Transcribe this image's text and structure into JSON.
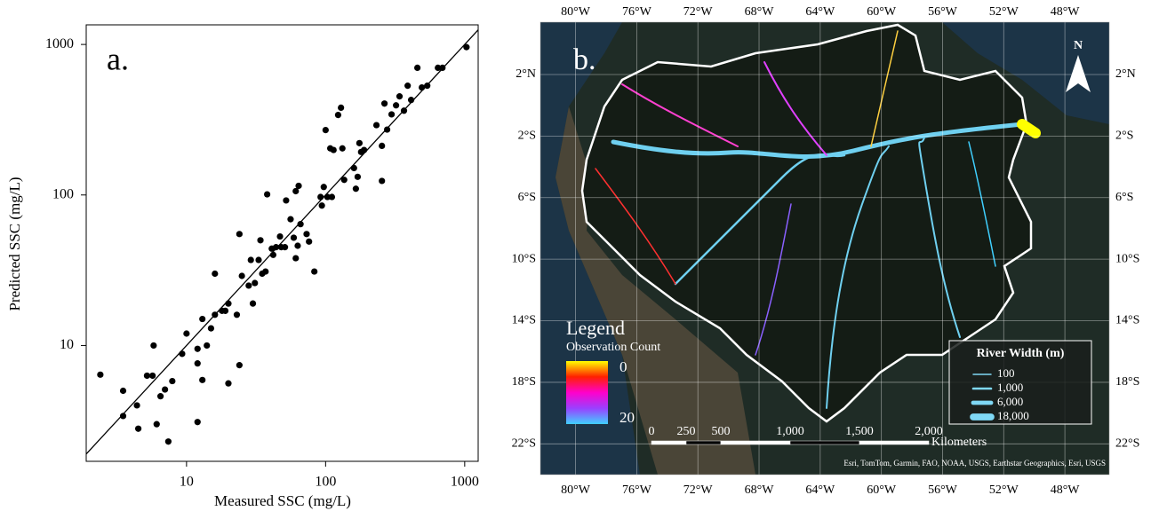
{
  "chart_data": [
    {
      "type": "scatter",
      "panel_label": "a.",
      "x_label": "Measured SSC (mg/L)",
      "y_label": "Predicted SSC (mg/L)",
      "xscale": "log",
      "yscale": "log",
      "xlim": [
        1.9,
        1250
      ],
      "ylim": [
        1.7,
        1350
      ],
      "xticks": [
        10,
        100,
        1000
      ],
      "yticks": [
        10,
        100,
        1000
      ],
      "grid": false,
      "color": "#000000",
      "x": [
        2.4,
        3.5,
        3.5,
        4.4,
        4.5,
        5.2,
        5.7,
        5.8,
        6.1,
        6.5,
        7.0,
        7.4,
        7.9,
        9.3,
        10,
        12,
        12,
        12,
        13,
        13,
        14,
        15,
        16,
        16,
        18,
        19,
        20,
        20,
        23,
        24,
        24,
        25,
        28,
        29,
        30,
        31,
        33,
        34,
        35,
        37,
        38,
        41,
        42,
        44,
        47,
        48,
        51,
        52,
        56,
        59,
        61,
        61,
        63,
        64,
        66,
        73,
        76,
        83,
        92,
        94,
        97,
        100,
        103,
        108,
        111,
        114,
        123,
        129,
        132,
        136,
        160,
        165,
        170,
        175,
        180,
        189,
        232,
        254,
        254,
        265,
        277,
        298,
        321,
        340,
        366,
        389,
        412,
        457,
        492,
        538,
        642,
        692,
        1030
      ],
      "y": [
        6.4,
        5.0,
        3.4,
        4.0,
        2.8,
        6.3,
        6.3,
        10,
        3.0,
        4.6,
        5.1,
        2.3,
        5.8,
        8.8,
        12,
        7.6,
        9.5,
        3.1,
        5.9,
        15,
        10,
        13,
        16,
        30,
        17,
        17,
        5.6,
        19,
        16,
        7.4,
        55,
        29,
        25,
        37,
        19,
        26,
        37,
        50,
        30,
        31,
        101,
        44,
        40,
        45,
        53,
        45,
        45,
        92,
        69,
        52,
        106,
        38,
        46,
        115,
        64,
        55,
        49,
        31,
        97,
        85,
        113,
        270,
        97,
        204,
        97,
        199,
        340,
        380,
        204,
        126,
        151,
        110,
        132,
        221,
        193,
        199,
        291,
        212,
        124,
        405,
        272,
        343,
        394,
        452,
        363,
        532,
        428,
        700,
        518,
        532,
        700,
        700,
        960
      ],
      "reference_line": {
        "x": [
          1.9,
          1250
        ],
        "y": [
          1.9,
          1250
        ]
      }
    },
    {
      "type": "map",
      "panel_label": "b.",
      "xlim": [
        -82.3,
        -45.1
      ],
      "ylim": [
        -24,
        5.4
      ],
      "grid": true,
      "xticks": [
        {
          "value": -80,
          "label": "80°W"
        },
        {
          "value": -76,
          "label": "76°W"
        },
        {
          "value": -72,
          "label": "72°W"
        },
        {
          "value": -68,
          "label": "68°W"
        },
        {
          "value": -64,
          "label": "64°W"
        },
        {
          "value": -60,
          "label": "60°W"
        },
        {
          "value": -56,
          "label": "56°W"
        },
        {
          "value": -52,
          "label": "52°W"
        },
        {
          "value": -48,
          "label": "48°W"
        }
      ],
      "yticks": [
        {
          "value": 2,
          "label": "2°N"
        },
        {
          "value": -2,
          "label": "2°S"
        },
        {
          "value": -6,
          "label": "6°S"
        },
        {
          "value": -10,
          "label": "10°S"
        },
        {
          "value": -14,
          "label": "14°S"
        },
        {
          "value": -18,
          "label": "18°S"
        },
        {
          "value": -22,
          "label": "22°S"
        }
      ],
      "north_label": "N",
      "observation_legend": {
        "title": "Legend",
        "subtitle": "Observation Count",
        "min": 0,
        "max": 20,
        "colors": [
          "#ffff00",
          "#ff2000",
          "#ff00cc",
          "#9a40ff",
          "#40d0ff"
        ]
      },
      "river_width_legend": {
        "title": "River Width (m)",
        "values": [
          100,
          1000,
          6000,
          18000
        ],
        "value_labels": [
          "100",
          "1,000",
          "6,000",
          "18,000"
        ],
        "color": "#7fd8f5"
      },
      "scale_bar": {
        "ticks": [
          0,
          250,
          500,
          {
            "value": 1000,
            "label": "1,000"
          },
          {
            "value": 1500,
            "label": "1,500"
          },
          {
            "value": 2000,
            "label": "2,000"
          }
        ],
        "unit": "Kilometers"
      },
      "attribution": "Esri, TomTom, Garmin, FAO, NOAA, USGS, Earthstar Geographics, Esri, USGS"
    }
  ]
}
